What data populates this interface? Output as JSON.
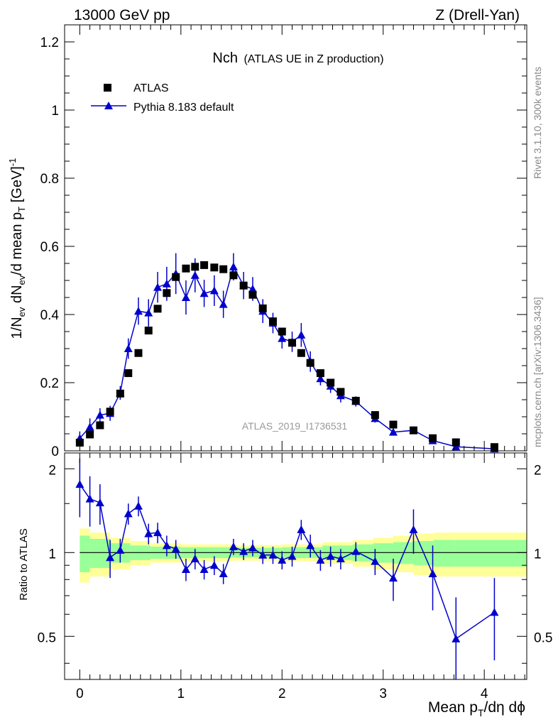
{
  "header": {
    "energy_label": "13000 GeV pp",
    "process_label": "Z (Drell-Yan)"
  },
  "side_labels": {
    "rivet": "Rivet 3.1.10,  300k events",
    "mcplots": "mcplots.cern.ch [arXiv:1306.3436]"
  },
  "colors": {
    "data": "#000000",
    "mc": "#0000cc",
    "band_inner": "#99ff99",
    "band_outer": "#ffff99"
  },
  "chart_data": [
    {
      "type": "scatter",
      "panel": "main",
      "title": "Nch",
      "subtitle": "(ATLAS UE in Z production)",
      "ylabel_parts": [
        "1/N",
        "ev",
        " dN",
        "ev",
        "/d mean p",
        "T",
        " [GeV]",
        "-1"
      ],
      "xlim": [
        -0.15,
        4.42
      ],
      "ylim": [
        0,
        1.25
      ],
      "yticks": [
        0,
        0.2,
        0.4,
        0.6,
        0.8,
        1.0,
        1.2
      ],
      "ytick_labels": [
        "0",
        "0.2",
        "0.4",
        "0.6",
        "0.8",
        "1",
        "1.2"
      ],
      "analysis_label": "ATLAS_2019_I1736531",
      "legend": [
        {
          "label": "ATLAS",
          "marker": "square"
        },
        {
          "label": "Pythia 8.183 default",
          "marker": "triangle"
        }
      ],
      "legend_position": "top-left",
      "series": [
        {
          "name": "ATLAS",
          "x": [
            0.0,
            0.1,
            0.2,
            0.3,
            0.4,
            0.48,
            0.58,
            0.68,
            0.77,
            0.86,
            0.95,
            1.05,
            1.14,
            1.23,
            1.33,
            1.42,
            1.52,
            1.62,
            1.71,
            1.81,
            1.91,
            2.0,
            2.1,
            2.19,
            2.28,
            2.38,
            2.48,
            2.58,
            2.73,
            2.92,
            3.1,
            3.3,
            3.49,
            3.72,
            4.1
          ],
          "y": [
            0.024,
            0.048,
            0.075,
            0.115,
            0.168,
            0.228,
            0.287,
            0.353,
            0.417,
            0.463,
            0.51,
            0.535,
            0.54,
            0.545,
            0.538,
            0.533,
            0.515,
            0.485,
            0.458,
            0.418,
            0.38,
            0.35,
            0.317,
            0.287,
            0.258,
            0.228,
            0.2,
            0.173,
            0.147,
            0.105,
            0.077,
            0.06,
            0.037,
            0.025,
            0.011
          ]
        },
        {
          "name": "Pythia 8.183 default",
          "x": [
            0.0,
            0.1,
            0.2,
            0.3,
            0.4,
            0.48,
            0.58,
            0.68,
            0.77,
            0.86,
            0.95,
            1.05,
            1.14,
            1.23,
            1.33,
            1.42,
            1.52,
            1.62,
            1.71,
            1.81,
            1.91,
            2.0,
            2.1,
            2.19,
            2.28,
            2.38,
            2.48,
            2.58,
            2.73,
            2.92,
            3.1,
            3.3,
            3.49,
            3.72,
            4.1
          ],
          "y": [
            0.037,
            0.07,
            0.105,
            0.11,
            0.17,
            0.3,
            0.41,
            0.405,
            0.48,
            0.49,
            0.52,
            0.45,
            0.515,
            0.462,
            0.47,
            0.43,
            0.54,
            0.485,
            0.475,
            0.41,
            0.375,
            0.33,
            0.32,
            0.34,
            0.262,
            0.212,
            0.19,
            0.162,
            0.145,
            0.095,
            0.055,
            0.06,
            0.03,
            0.012,
            0.006
          ],
          "yerr": [
            0.02,
            0.025,
            0.02,
            0.022,
            0.02,
            0.03,
            0.04,
            0.04,
            0.045,
            0.05,
            0.06,
            0.05,
            0.05,
            0.04,
            0.045,
            0.04,
            0.04,
            0.04,
            0.035,
            0.035,
            0.03,
            0.03,
            0.03,
            0.035,
            0.03,
            0.02,
            0.02,
            0.02,
            0.015,
            0.012,
            0.01,
            0.01,
            0.008,
            0.005,
            0.005
          ]
        }
      ]
    },
    {
      "type": "line",
      "panel": "ratio",
      "ylabel": "Ratio to ATLAS",
      "xlabel_parts": [
        "Mean p",
        "T",
        "/dη dϕ"
      ],
      "xlim": [
        -0.15,
        4.42
      ],
      "ylim": [
        0.35,
        2.28
      ],
      "scale": "log",
      "yticks": [
        0.5,
        1,
        2
      ],
      "ytick_labels": [
        "0.5",
        "1",
        "2"
      ],
      "xticks": [
        0,
        1,
        2,
        3,
        4
      ],
      "xtick_labels": [
        "0",
        "1",
        "2",
        "3",
        "4"
      ],
      "reference": 1.0,
      "bands": {
        "edges": [
          0.0,
          0.1,
          0.3,
          0.5,
          0.7,
          1.0,
          1.5,
          2.0,
          2.4,
          2.7,
          2.9,
          3.1,
          3.3,
          3.5,
          3.7,
          4.42
        ],
        "inner": [
          0.15,
          0.12,
          0.08,
          0.06,
          0.05,
          0.045,
          0.04,
          0.045,
          0.06,
          0.07,
          0.08,
          0.09,
          0.1,
          0.11,
          0.11
        ],
        "outer": [
          0.22,
          0.18,
          0.13,
          0.1,
          0.08,
          0.07,
          0.065,
          0.07,
          0.09,
          0.11,
          0.13,
          0.15,
          0.17,
          0.18,
          0.18
        ]
      },
      "series": [
        {
          "name": "Pythia 8.183 default",
          "x": [
            0.0,
            0.1,
            0.2,
            0.3,
            0.4,
            0.48,
            0.58,
            0.68,
            0.77,
            0.86,
            0.95,
            1.05,
            1.14,
            1.23,
            1.33,
            1.42,
            1.52,
            1.62,
            1.71,
            1.81,
            1.91,
            2.0,
            2.1,
            2.19,
            2.28,
            2.38,
            2.48,
            2.58,
            2.73,
            2.92,
            3.1,
            3.3,
            3.49,
            3.72,
            4.1
          ],
          "y": [
            1.76,
            1.56,
            1.51,
            0.96,
            1.02,
            1.38,
            1.47,
            1.17,
            1.18,
            1.06,
            1.03,
            0.87,
            0.95,
            0.87,
            0.9,
            0.84,
            1.05,
            1.01,
            1.04,
            0.98,
            0.98,
            0.94,
            0.97,
            1.21,
            1.06,
            0.94,
            0.97,
            0.95,
            1.01,
            0.93,
            0.81,
            1.21,
            0.84,
            0.49,
            0.61
          ],
          "yerr": [
            0.42,
            0.32,
            0.25,
            0.15,
            0.1,
            0.12,
            0.12,
            0.1,
            0.1,
            0.09,
            0.08,
            0.08,
            0.08,
            0.07,
            0.07,
            0.07,
            0.07,
            0.07,
            0.07,
            0.07,
            0.07,
            0.07,
            0.08,
            0.1,
            0.1,
            0.08,
            0.08,
            0.08,
            0.08,
            0.1,
            0.14,
            0.22,
            0.22,
            0.2,
            0.2
          ]
        }
      ]
    }
  ]
}
